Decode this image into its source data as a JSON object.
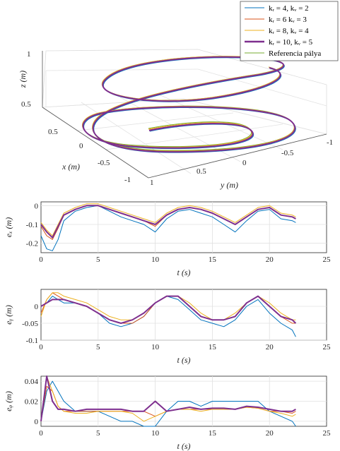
{
  "colors": {
    "blue": "#0072BD",
    "orange": "#D95319",
    "yellow": "#EDB120",
    "purple": "#7E2F8E",
    "green": "#77AC30"
  },
  "legend": {
    "placement": "top-right",
    "entries": [
      {
        "text": "kᵣ = 4,    kᵥ = 2",
        "color": "#0072BD",
        "width": 1
      },
      {
        "text": "kᵣ = 6    kᵥ = 3",
        "color": "#D95319",
        "width": 1
      },
      {
        "text": "kᵣ = 8,    kᵥ = 4",
        "color": "#EDB120",
        "width": 1
      },
      {
        "text": "kᵣ = 10,    kᵥ = 5",
        "color": "#7E2F8E",
        "width": 2.5
      },
      {
        "text": "Referencia pálya",
        "color": "#77AC30",
        "width": 1
      }
    ]
  },
  "plot3d": {
    "xlabel": "x (m)",
    "ylabel": "y (m)",
    "zlabel": "z (m)",
    "z_ticks": [
      "1",
      "0.5"
    ],
    "x_ticks": [
      "0.5",
      "0",
      "-0.5",
      "-1"
    ],
    "y_ticks": [
      "1",
      "0.5",
      "0",
      "-0.5",
      "-1"
    ]
  },
  "chart_data": [
    {
      "type": "line",
      "panel": "ex",
      "ylabel": "eₓ (m)",
      "xlabel": "t (s)",
      "xlim": [
        0,
        25
      ],
      "ylim": [
        -0.25,
        0.02
      ],
      "x_ticks": [
        "0",
        "5",
        "10",
        "15",
        "20",
        "25"
      ],
      "y_ticks": [
        "0",
        "-0.1",
        "-0.2"
      ],
      "grid": true,
      "x": [
        0,
        0.5,
        1,
        1.5,
        2,
        3,
        4,
        5,
        6,
        7,
        8,
        9,
        10,
        11,
        12,
        13,
        14,
        15,
        16,
        17,
        18,
        19,
        20,
        21,
        22,
        22.3
      ],
      "series": [
        {
          "name": "kᵣ = 4,    kᵥ = 2",
          "values": [
            -0.16,
            -0.23,
            -0.24,
            -0.18,
            -0.08,
            -0.03,
            -0.01,
            0.0,
            -0.03,
            -0.06,
            -0.08,
            -0.1,
            -0.14,
            -0.07,
            -0.03,
            -0.02,
            -0.04,
            -0.06,
            -0.1,
            -0.14,
            -0.08,
            -0.03,
            -0.02,
            -0.07,
            -0.08,
            -0.09
          ]
        },
        {
          "name": "kᵣ = 6    kᵥ = 3",
          "values": [
            -0.11,
            -0.16,
            -0.18,
            -0.12,
            -0.05,
            -0.02,
            0.0,
            0.0,
            -0.02,
            -0.04,
            -0.06,
            -0.08,
            -0.11,
            -0.05,
            -0.02,
            -0.01,
            -0.02,
            -0.04,
            -0.07,
            -0.1,
            -0.06,
            -0.02,
            -0.01,
            -0.05,
            -0.06,
            -0.07
          ]
        },
        {
          "name": "kᵣ = 8,    kᵥ = 4",
          "values": [
            -0.09,
            -0.13,
            -0.16,
            -0.1,
            -0.04,
            -0.01,
            0.01,
            0.01,
            -0.01,
            -0.03,
            -0.05,
            -0.07,
            -0.09,
            -0.04,
            -0.01,
            0.0,
            -0.01,
            -0.03,
            -0.06,
            -0.09,
            -0.05,
            -0.01,
            0.0,
            -0.04,
            -0.05,
            -0.06
          ]
        },
        {
          "name": "kᵣ = 10,    kᵥ = 5",
          "values": [
            -0.1,
            -0.14,
            -0.17,
            -0.11,
            -0.05,
            -0.02,
            0.0,
            0.0,
            -0.02,
            -0.04,
            -0.06,
            -0.08,
            -0.1,
            -0.05,
            -0.02,
            -0.01,
            -0.02,
            -0.04,
            -0.07,
            -0.1,
            -0.06,
            -0.02,
            -0.01,
            -0.05,
            -0.06,
            -0.07
          ]
        }
      ]
    },
    {
      "type": "line",
      "panel": "ey",
      "ylabel": "eᵧ (m)",
      "xlabel": "t (s)",
      "xlim": [
        0,
        25
      ],
      "ylim": [
        -0.1,
        0.05
      ],
      "x_ticks": [
        "0",
        "5",
        "10",
        "15",
        "20",
        "25"
      ],
      "y_ticks": [
        "0",
        "-0.05",
        "-0.1"
      ],
      "grid": true,
      "x": [
        0,
        0.5,
        1,
        1.5,
        2,
        3,
        4,
        5,
        6,
        7,
        8,
        9,
        10,
        11,
        12,
        13,
        14,
        15,
        16,
        17,
        18,
        19,
        20,
        21,
        22,
        22.3
      ],
      "series": [
        {
          "name": "kᵣ = 4,    kᵥ = 2",
          "values": [
            0.0,
            0.01,
            0.03,
            0.02,
            0.01,
            0.01,
            0.0,
            -0.02,
            -0.05,
            -0.06,
            -0.05,
            -0.03,
            0.01,
            0.03,
            0.02,
            -0.01,
            -0.04,
            -0.05,
            -0.06,
            -0.04,
            0.0,
            0.02,
            -0.02,
            -0.05,
            -0.07,
            -0.09
          ]
        },
        {
          "name": "kᵣ = 6    kᵥ = 3",
          "values": [
            -0.02,
            0.02,
            0.04,
            0.03,
            0.02,
            0.01,
            0.0,
            -0.02,
            -0.04,
            -0.05,
            -0.05,
            -0.03,
            0.01,
            0.03,
            0.03,
            0.0,
            -0.03,
            -0.04,
            -0.04,
            -0.03,
            0.01,
            0.03,
            0.0,
            -0.03,
            -0.05,
            -0.05
          ]
        },
        {
          "name": "kᵣ = 8,    kᵥ = 4",
          "values": [
            -0.03,
            0.02,
            0.04,
            0.04,
            0.03,
            0.02,
            0.01,
            -0.01,
            -0.03,
            -0.04,
            -0.04,
            -0.02,
            0.01,
            0.03,
            0.03,
            0.01,
            -0.02,
            -0.04,
            -0.04,
            -0.02,
            0.01,
            0.03,
            0.01,
            -0.02,
            -0.04,
            -0.04
          ]
        },
        {
          "name": "kᵣ = 10,    kᵥ = 5",
          "values": [
            0.0,
            0.01,
            0.02,
            0.02,
            0.02,
            0.01,
            0.0,
            -0.02,
            -0.04,
            -0.05,
            -0.04,
            -0.02,
            0.01,
            0.03,
            0.03,
            0.0,
            -0.03,
            -0.04,
            -0.04,
            -0.03,
            0.01,
            0.03,
            0.0,
            -0.03,
            -0.04,
            -0.05
          ]
        }
      ]
    },
    {
      "type": "line",
      "panel": "ez",
      "ylabel": "eᵩ (m)",
      "xlabel": "t (s)",
      "xlim": [
        0,
        25
      ],
      "ylim": [
        -0.005,
        0.045
      ],
      "x_ticks": [
        "0",
        "5",
        "10",
        "15",
        "20",
        "25"
      ],
      "y_ticks": [
        "0.04",
        "0.02",
        "0"
      ],
      "grid": true,
      "x": [
        0,
        0.5,
        1,
        1.5,
        2,
        3,
        4,
        5,
        6,
        7,
        8,
        9,
        10,
        11,
        12,
        13,
        14,
        15,
        16,
        17,
        18,
        19,
        20,
        21,
        22,
        22.3
      ],
      "series": [
        {
          "name": "kᵣ = 4,    kᵥ = 2",
          "values": [
            0.0,
            0.03,
            0.04,
            0.03,
            0.02,
            0.01,
            0.01,
            0.01,
            0.005,
            0.0,
            0.0,
            -0.005,
            -0.005,
            0.01,
            0.02,
            0.02,
            0.015,
            0.02,
            0.02,
            0.02,
            0.02,
            0.02,
            0.01,
            0.005,
            0.0,
            -0.005
          ]
        },
        {
          "name": "kᵣ = 6    kᵥ = 3",
          "values": [
            0.0,
            0.035,
            0.03,
            0.015,
            0.01,
            0.01,
            0.01,
            0.01,
            0.01,
            0.01,
            0.01,
            0.01,
            0.005,
            0.01,
            0.012,
            0.012,
            0.012,
            0.012,
            0.012,
            0.012,
            0.014,
            0.013,
            0.01,
            0.01,
            0.008,
            0.01
          ]
        },
        {
          "name": "kᵣ = 8,    kᵥ = 4",
          "values": [
            0.0,
            0.045,
            0.03,
            0.015,
            0.01,
            0.008,
            0.008,
            0.01,
            0.01,
            0.01,
            0.008,
            0.0,
            0.005,
            0.01,
            0.012,
            0.012,
            0.01,
            0.012,
            0.012,
            0.012,
            0.014,
            0.013,
            0.01,
            0.008,
            0.005,
            0.007
          ]
        },
        {
          "name": "kᵣ = 10,    kᵥ = 5",
          "values": [
            0.0,
            0.045,
            0.02,
            0.012,
            0.012,
            0.01,
            0.012,
            0.012,
            0.012,
            0.012,
            0.01,
            0.01,
            0.02,
            0.01,
            0.012,
            0.014,
            0.012,
            0.013,
            0.013,
            0.012,
            0.015,
            0.014,
            0.012,
            0.01,
            0.01,
            0.012
          ]
        }
      ]
    }
  ]
}
